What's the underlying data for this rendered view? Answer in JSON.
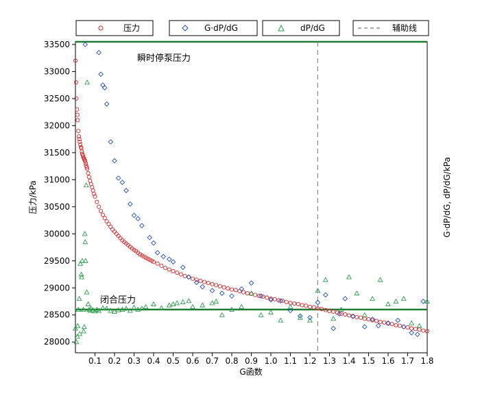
{
  "chart_data": {
    "type": "scatter",
    "xlabel": "G函数",
    "ylabel_left": "压力/kPa",
    "ylabel_right": "G·dP/dG, dP/dG/kPa",
    "xlim": [
      0,
      1.8
    ],
    "ylim": [
      27800,
      33550
    ],
    "x_ticks": [
      {
        "value": 0.1,
        "label": "0.1"
      },
      {
        "value": 0.2,
        "label": "0.2"
      },
      {
        "value": 0.3,
        "label": "0.3"
      },
      {
        "value": 0.4,
        "label": "0.4"
      },
      {
        "value": 0.5,
        "label": "0.5"
      },
      {
        "value": 0.6,
        "label": "0.6"
      },
      {
        "value": 0.7,
        "label": "0.7"
      },
      {
        "value": 0.8,
        "label": "0.8"
      },
      {
        "value": 0.9,
        "label": "0.9"
      },
      {
        "value": 1.0,
        "label": "1.0"
      },
      {
        "value": 1.1,
        "label": "1.1"
      },
      {
        "value": 1.2,
        "label": "1.2"
      },
      {
        "value": 1.3,
        "label": "1.3"
      },
      {
        "value": 1.4,
        "label": "1.4"
      },
      {
        "value": 1.5,
        "label": "1.5"
      },
      {
        "value": 1.6,
        "label": "1.6"
      },
      {
        "value": 1.7,
        "label": "1.7"
      },
      {
        "value": 1.8,
        "label": "1.8"
      }
    ],
    "y_ticks": [
      28000,
      28500,
      29000,
      29500,
      30000,
      30500,
      31000,
      31500,
      32000,
      32500,
      33000,
      33500
    ],
    "legend": {
      "position": "top",
      "entries": [
        {
          "label": "压力",
          "marker": "circle",
          "color": "#d62728"
        },
        {
          "label": "G·dP/dG",
          "marker": "diamond",
          "color": "#1f4fbf"
        },
        {
          "label": "dP/dG",
          "marker": "triangle",
          "color": "#2a9d4a"
        },
        {
          "label": "辅助线",
          "marker": "dashed-line",
          "color": "#888888"
        }
      ]
    },
    "reference_lines": [
      {
        "kind": "horizontal",
        "y": 33550,
        "label": "瞬时停泵压力",
        "color": "#1e7b34"
      },
      {
        "kind": "horizontal",
        "y": 28600,
        "label": "闭合压力",
        "color": "#1e7b34"
      },
      {
        "kind": "vertical",
        "x": 1.24,
        "label": "辅助线",
        "color": "#888888"
      }
    ],
    "annotations": [
      {
        "text": "瞬时停泵压力",
        "x": 0.32,
        "y": 33260
      },
      {
        "text": "闭合压力",
        "x": 0.13,
        "y": 28730
      }
    ],
    "series": [
      {
        "name": "压力",
        "marker": "circle",
        "color": "#d62728",
        "x": [
          0.0,
          0.003,
          0.005,
          0.008,
          0.01,
          0.012,
          0.015,
          0.018,
          0.02,
          0.022,
          0.025,
          0.028,
          0.03,
          0.033,
          0.035,
          0.038,
          0.04,
          0.043,
          0.045,
          0.048,
          0.05,
          0.053,
          0.055,
          0.058,
          0.06,
          0.065,
          0.07,
          0.075,
          0.08,
          0.085,
          0.09,
          0.095,
          0.1,
          0.11,
          0.12,
          0.13,
          0.14,
          0.15,
          0.16,
          0.17,
          0.18,
          0.19,
          0.2,
          0.21,
          0.22,
          0.23,
          0.24,
          0.25,
          0.26,
          0.27,
          0.28,
          0.29,
          0.3,
          0.31,
          0.32,
          0.33,
          0.34,
          0.35,
          0.36,
          0.37,
          0.38,
          0.39,
          0.4,
          0.42,
          0.44,
          0.46,
          0.48,
          0.5,
          0.52,
          0.54,
          0.56,
          0.58,
          0.6,
          0.62,
          0.64,
          0.66,
          0.68,
          0.7,
          0.72,
          0.74,
          0.76,
          0.78,
          0.8,
          0.82,
          0.84,
          0.86,
          0.88,
          0.9,
          0.92,
          0.94,
          0.96,
          0.98,
          1.0,
          1.02,
          1.04,
          1.06,
          1.08,
          1.1,
          1.12,
          1.14,
          1.16,
          1.18,
          1.2,
          1.22,
          1.24,
          1.26,
          1.28,
          1.3,
          1.32,
          1.34,
          1.36,
          1.38,
          1.4,
          1.42,
          1.44,
          1.46,
          1.48,
          1.5,
          1.52,
          1.54,
          1.56,
          1.58,
          1.6,
          1.62,
          1.64,
          1.66,
          1.68,
          1.7,
          1.72,
          1.74,
          1.76,
          1.78,
          1.8
        ],
        "y": [
          33200,
          32800,
          32500,
          32300,
          32200,
          32100,
          31900,
          31800,
          31750,
          31700,
          31650,
          31600,
          31580,
          31520,
          31480,
          31450,
          31420,
          31400,
          31380,
          31360,
          31340,
          31300,
          31260,
          31230,
          31200,
          31120,
          31050,
          30980,
          30920,
          30860,
          30800,
          30740,
          30690,
          30590,
          30500,
          30420,
          30350,
          30290,
          30230,
          30180,
          30130,
          30080,
          30040,
          30000,
          29960,
          29920,
          29880,
          29850,
          29820,
          29790,
          29760,
          29730,
          29700,
          29680,
          29650,
          29620,
          29600,
          29580,
          29560,
          29540,
          29520,
          29500,
          29480,
          29450,
          29410,
          29370,
          29340,
          29310,
          29280,
          29250,
          29220,
          29200,
          29170,
          29150,
          29130,
          29110,
          29090,
          29070,
          29050,
          29030,
          29010,
          28990,
          28970,
          28960,
          28940,
          28920,
          28900,
          28890,
          28870,
          28850,
          28840,
          28820,
          28800,
          28790,
          28770,
          28760,
          28740,
          28720,
          28710,
          28700,
          28680,
          28670,
          28650,
          28640,
          28620,
          28610,
          28590,
          28570,
          28560,
          28540,
          28520,
          28510,
          28490,
          28480,
          28460,
          28450,
          28430,
          28420,
          28400,
          28390,
          28370,
          28360,
          28340,
          28330,
          28310,
          28300,
          28280,
          28270,
          28250,
          28240,
          28230,
          28210,
          28200
        ]
      },
      {
        "name": "G·dP/dG",
        "marker": "diamond",
        "color": "#1f4fbf",
        "x": [
          0.05,
          0.12,
          0.13,
          0.14,
          0.15,
          0.16,
          0.18,
          0.2,
          0.22,
          0.24,
          0.26,
          0.28,
          0.3,
          0.32,
          0.34,
          0.38,
          0.4,
          0.42,
          0.45,
          0.48,
          0.5,
          0.55,
          0.58,
          0.62,
          0.65,
          0.7,
          0.75,
          0.8,
          0.85,
          0.9,
          0.95,
          1.0,
          1.05,
          1.1,
          1.15,
          1.2,
          1.24,
          1.28,
          1.32,
          1.35,
          1.38,
          1.42,
          1.48,
          1.52,
          1.55,
          1.6,
          1.65,
          1.68,
          1.72,
          1.75,
          1.78
        ],
        "y": [
          33500,
          33350,
          32950,
          32750,
          32700,
          32400,
          31700,
          31350,
          31030,
          30950,
          30800,
          30550,
          30340,
          30280,
          30150,
          29930,
          29830,
          29650,
          29580,
          29530,
          29480,
          29380,
          29200,
          29100,
          29020,
          28950,
          28900,
          28850,
          28980,
          29090,
          28850,
          28780,
          28760,
          28580,
          28480,
          28450,
          28730,
          28870,
          28250,
          28520,
          28800,
          28470,
          28280,
          28420,
          28300,
          28350,
          28400,
          28280,
          28170,
          28140,
          28750
        ]
      },
      {
        "name": "dP/dG",
        "marker": "triangle",
        "color": "#2a9d4a",
        "x": [
          0.0,
          0.005,
          0.01,
          0.012,
          0.015,
          0.02,
          0.022,
          0.025,
          0.03,
          0.032,
          0.035,
          0.04,
          0.042,
          0.045,
          0.048,
          0.05,
          0.052,
          0.055,
          0.058,
          0.06,
          0.065,
          0.07,
          0.075,
          0.08,
          0.09,
          0.1,
          0.11,
          0.12,
          0.14,
          0.16,
          0.18,
          0.2,
          0.22,
          0.24,
          0.26,
          0.28,
          0.3,
          0.32,
          0.34,
          0.36,
          0.4,
          0.44,
          0.48,
          0.5,
          0.52,
          0.55,
          0.58,
          0.6,
          0.65,
          0.7,
          0.72,
          0.75,
          0.8,
          0.85,
          0.9,
          0.95,
          1.0,
          1.05,
          1.1,
          1.15,
          1.2,
          1.24,
          1.28,
          1.32,
          1.36,
          1.4,
          1.44,
          1.48,
          1.52,
          1.56,
          1.6,
          1.64,
          1.68,
          1.72,
          1.76,
          1.8
        ],
        "y": [
          28250,
          28000,
          28100,
          28300,
          28600,
          28800,
          28150,
          29450,
          29250,
          29200,
          29500,
          28600,
          28200,
          28280,
          30000,
          29850,
          29500,
          30900,
          28920,
          32800,
          28700,
          28600,
          28580,
          28620,
          28590,
          28570,
          28600,
          28580,
          28630,
          28620,
          28580,
          28560,
          28590,
          28600,
          28620,
          28580,
          28640,
          28600,
          28620,
          28650,
          28700,
          28630,
          28680,
          28700,
          28720,
          28740,
          28760,
          28650,
          28680,
          28720,
          28750,
          28500,
          28600,
          28650,
          28900,
          28500,
          28550,
          28400,
          28650,
          28450,
          28400,
          28950,
          29150,
          28430,
          28600,
          29200,
          28900,
          28500,
          28800,
          29150,
          28700,
          28750,
          28800,
          28350,
          28300,
          28750
        ]
      }
    ]
  }
}
